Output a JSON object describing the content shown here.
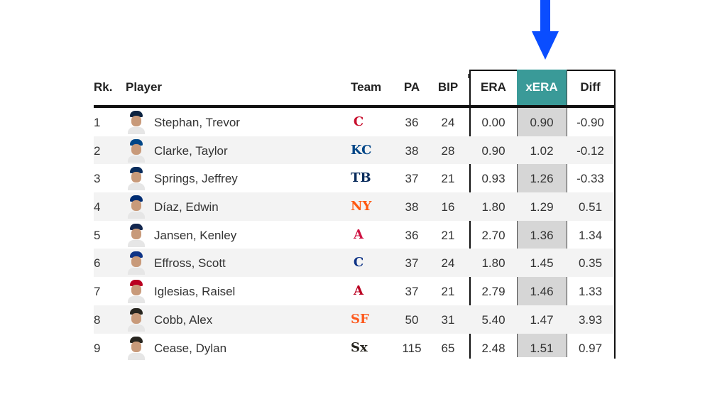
{
  "header": {
    "rk": "Rk.",
    "player": "Player",
    "team": "Team",
    "pa": "PA",
    "bip": "BIP",
    "era": "ERA",
    "xera": "xERA",
    "diff": "Diff"
  },
  "colors": {
    "arrow": "#0a4dff",
    "xera_header": "#3a9a98",
    "xera_column": "#d6d6d6"
  },
  "rows": [
    {
      "rk": "1",
      "name": "Stephan, Trevor",
      "team_icon": "guardians-logo-icon",
      "team_glyph": "C",
      "team_color": "#c8102e",
      "pa": "36",
      "bip": "24",
      "era": "0.00",
      "xera": "0.90",
      "diff": "-0.90",
      "cap": "#0c2340"
    },
    {
      "rk": "2",
      "name": "Clarke, Taylor",
      "team_icon": "royals-logo-icon",
      "team_glyph": "KC",
      "team_color": "#004687",
      "pa": "38",
      "bip": "28",
      "era": "0.90",
      "xera": "1.02",
      "diff": "-0.12",
      "cap": "#004687"
    },
    {
      "rk": "3",
      "name": "Springs, Jeffrey",
      "team_icon": "rays-logo-icon",
      "team_glyph": "TB",
      "team_color": "#092c5c",
      "pa": "37",
      "bip": "21",
      "era": "0.93",
      "xera": "1.26",
      "diff": "-0.33",
      "cap": "#092c5c"
    },
    {
      "rk": "4",
      "name": "Díaz, Edwin",
      "team_icon": "mets-logo-icon",
      "team_glyph": "NY",
      "team_color": "#ff5910",
      "pa": "38",
      "bip": "16",
      "era": "1.80",
      "xera": "1.29",
      "diff": "0.51",
      "cap": "#002d72"
    },
    {
      "rk": "5",
      "name": "Jansen, Kenley",
      "team_icon": "braves-logo-icon",
      "team_glyph": "A",
      "team_color": "#ce1141",
      "pa": "36",
      "bip": "21",
      "era": "2.70",
      "xera": "1.36",
      "diff": "1.34",
      "cap": "#13274f"
    },
    {
      "rk": "6",
      "name": "Effross, Scott",
      "team_icon": "cubs-logo-icon",
      "team_glyph": "C",
      "team_color": "#0e3386",
      "pa": "37",
      "bip": "24",
      "era": "1.80",
      "xera": "1.45",
      "diff": "0.35",
      "cap": "#0e3386"
    },
    {
      "rk": "7",
      "name": "Iglesias, Raisel",
      "team_icon": "angels-logo-icon",
      "team_glyph": "A",
      "team_color": "#ba0021",
      "pa": "37",
      "bip": "21",
      "era": "2.79",
      "xera": "1.46",
      "diff": "1.33",
      "cap": "#ba0021"
    },
    {
      "rk": "8",
      "name": "Cobb, Alex",
      "team_icon": "giants-logo-icon",
      "team_glyph": "SF",
      "team_color": "#fd5a1e",
      "pa": "50",
      "bip": "31",
      "era": "5.40",
      "xera": "1.47",
      "diff": "3.93",
      "cap": "#27251f"
    },
    {
      "rk": "9",
      "name": "Cease, Dylan",
      "team_icon": "white-sox-logo-icon",
      "team_glyph": "Sx",
      "team_color": "#27251f",
      "pa": "115",
      "bip": "65",
      "era": "2.48",
      "xera": "1.51",
      "diff": "0.97",
      "cap": "#27251f"
    }
  ]
}
